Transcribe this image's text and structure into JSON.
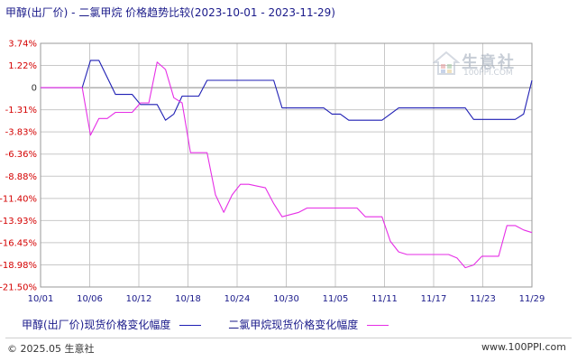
{
  "title": "甲醇(出厂价) - 二氯甲烷 价格趋势比较(2023-10-01 - 2023-11-29)",
  "legend": {
    "series1": "甲醇(出厂价)现货价格变化幅度",
    "series2": "二氯甲烷现货价格变化幅度"
  },
  "footer": {
    "copyright": "© 2025.05 生意社",
    "site": "www.100PPI.com"
  },
  "watermark": {
    "name": "生意社",
    "url": "100PPI.COM"
  },
  "colors": {
    "series1": "#1f1fb4",
    "series2": "#e62ee6",
    "grid": "#c8c8c8",
    "axis_text": "#d40000"
  },
  "chart_data": {
    "type": "line",
    "title": "甲醇(出厂价) - 二氯甲烷 价格趋势比较(2023-10-01 - 2023-11-29)",
    "y_ticks": [
      "3.74%",
      "1.22%",
      "0",
      "-1.31%",
      "-3.83%",
      "-6.36%",
      "-8.88%",
      "-11.40%",
      "-13.93%",
      "-16.45%",
      "-18.98%",
      "-21.50%"
    ],
    "y_tick_values": [
      3.74,
      1.22,
      0,
      -1.31,
      -3.83,
      -6.36,
      -8.88,
      -11.4,
      -13.93,
      -16.45,
      -18.98,
      -21.5
    ],
    "ylim": [
      -21.5,
      3.74
    ],
    "x_ticks": [
      "10/01",
      "10/06",
      "10/12",
      "10/18",
      "10/24",
      "10/30",
      "11/05",
      "11/11",
      "11/17",
      "11/23",
      "11/29"
    ],
    "xlim": [
      "2023-10-01",
      "2023-11-29"
    ],
    "grid": true,
    "legend_position": "bottom",
    "series": [
      {
        "name": "甲醇(出厂价)现货价格变化幅度",
        "color": "#1f1fb4",
        "points": [
          [
            "2023-10-01",
            0
          ],
          [
            "2023-10-06",
            0
          ],
          [
            "2023-10-07",
            1.8
          ],
          [
            "2023-10-08",
            1.8
          ],
          [
            "2023-10-10",
            -0.4
          ],
          [
            "2023-10-12",
            -0.4
          ],
          [
            "2023-10-13",
            -1.0
          ],
          [
            "2023-10-15",
            -1.0
          ],
          [
            "2023-10-16",
            -2.5
          ],
          [
            "2023-10-17",
            -1.8
          ],
          [
            "2023-10-18",
            -0.5
          ],
          [
            "2023-10-20",
            -0.5
          ],
          [
            "2023-10-21",
            0.4
          ],
          [
            "2023-10-28",
            0.4
          ],
          [
            "2023-10-29",
            0.4
          ],
          [
            "2023-10-30",
            -1.2
          ],
          [
            "2023-11-04",
            -1.2
          ],
          [
            "2023-11-05",
            -1.8
          ],
          [
            "2023-11-06",
            -1.8
          ],
          [
            "2023-11-07",
            -2.5
          ],
          [
            "2023-11-11",
            -2.5
          ],
          [
            "2023-11-13",
            -1.2
          ],
          [
            "2023-11-21",
            -1.2
          ],
          [
            "2023-11-22",
            -2.4
          ],
          [
            "2023-11-27",
            -2.4
          ],
          [
            "2023-11-28",
            -1.8
          ],
          [
            "2023-11-29",
            0.4
          ]
        ]
      },
      {
        "name": "二氯甲烷现货价格变化幅度",
        "color": "#e62ee6",
        "points": [
          [
            "2023-10-01",
            0
          ],
          [
            "2023-10-06",
            0
          ],
          [
            "2023-10-07",
            -4.2
          ],
          [
            "2023-10-08",
            -2.3
          ],
          [
            "2023-10-09",
            -2.3
          ],
          [
            "2023-10-10",
            -1.6
          ],
          [
            "2023-10-12",
            -1.6
          ],
          [
            "2023-10-13",
            -0.9
          ],
          [
            "2023-10-14",
            -0.9
          ],
          [
            "2023-10-15",
            1.6
          ],
          [
            "2023-10-16",
            1.0
          ],
          [
            "2023-10-17",
            -0.6
          ],
          [
            "2023-10-18",
            -0.9
          ],
          [
            "2023-10-19",
            -6.2
          ],
          [
            "2023-10-21",
            -6.2
          ],
          [
            "2023-10-22",
            -11.0
          ],
          [
            "2023-10-23",
            -13.0
          ],
          [
            "2023-10-24",
            -11.0
          ],
          [
            "2023-10-25",
            -9.8
          ],
          [
            "2023-10-26",
            -9.8
          ],
          [
            "2023-10-27",
            -10.0
          ],
          [
            "2023-10-28",
            -10.2
          ],
          [
            "2023-10-29",
            -12.0
          ],
          [
            "2023-10-30",
            -13.5
          ],
          [
            "2023-11-01",
            -13.0
          ],
          [
            "2023-11-02",
            -12.5
          ],
          [
            "2023-11-08",
            -12.5
          ],
          [
            "2023-11-09",
            -13.5
          ],
          [
            "2023-11-11",
            -13.5
          ],
          [
            "2023-11-12",
            -16.3
          ],
          [
            "2023-11-13",
            -17.5
          ],
          [
            "2023-11-14",
            -17.8
          ],
          [
            "2023-11-19",
            -17.8
          ],
          [
            "2023-11-20",
            -18.2
          ],
          [
            "2023-11-21",
            -19.3
          ],
          [
            "2023-11-22",
            -19.0
          ],
          [
            "2023-11-23",
            -18.0
          ],
          [
            "2023-11-25",
            -18.0
          ],
          [
            "2023-11-26",
            -14.5
          ],
          [
            "2023-11-27",
            -14.5
          ],
          [
            "2023-11-28",
            -15.0
          ],
          [
            "2023-11-29",
            -15.3
          ]
        ]
      }
    ]
  }
}
